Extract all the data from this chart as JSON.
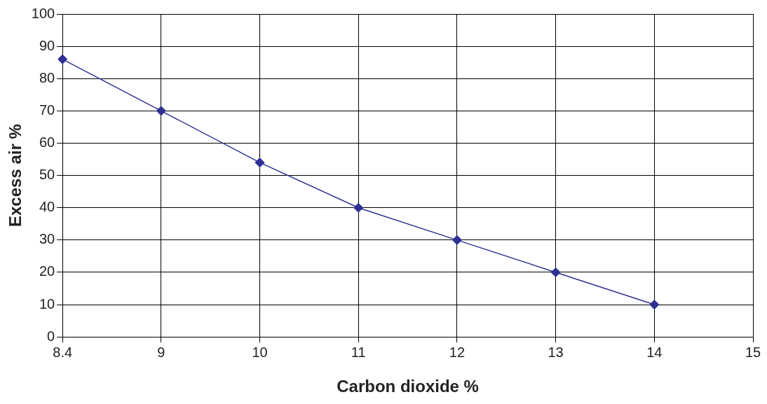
{
  "chart_data": {
    "type": "line",
    "xlabel": "Carbon dioxide %",
    "ylabel": "Excess air %",
    "categories": [
      "8.4",
      "9",
      "10",
      "11",
      "12",
      "13",
      "14",
      "15"
    ],
    "series": [
      {
        "color": "#2e3192",
        "values": [
          86,
          70,
          54,
          40,
          30,
          20,
          10,
          null
        ]
      }
    ],
    "ylim": [
      0,
      100
    ],
    "yticks": [
      0,
      10,
      20,
      30,
      40,
      50,
      60,
      70,
      80,
      90,
      100
    ],
    "grid": true,
    "legend": false,
    "marker": "diamond",
    "line_style": "solid"
  }
}
